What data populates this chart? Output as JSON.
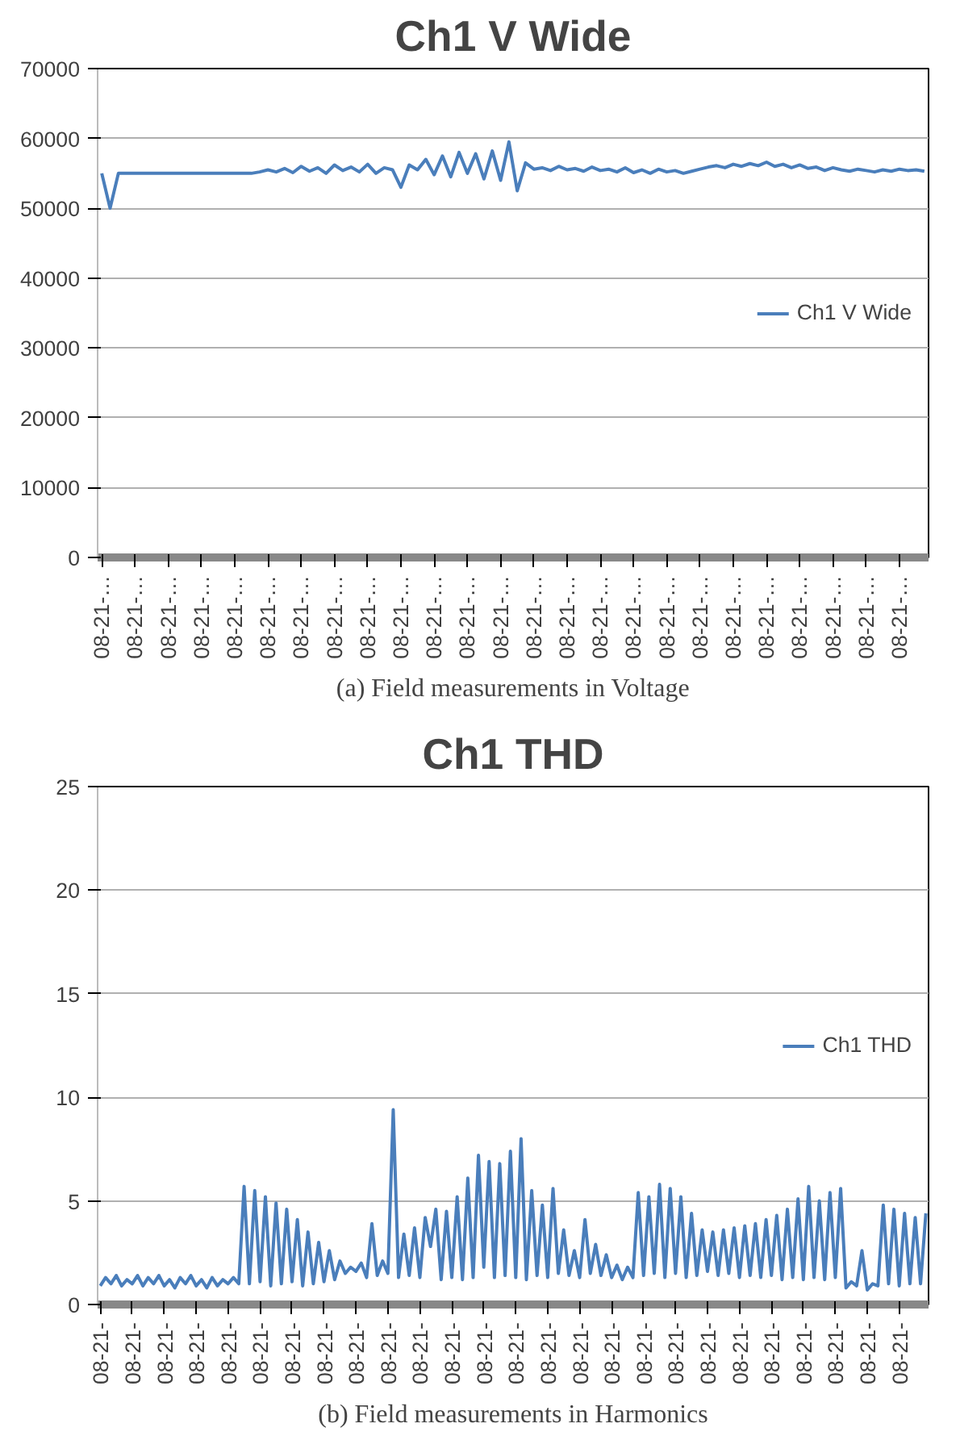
{
  "chart_data": [
    {
      "type": "line",
      "title": "Ch1 V Wide",
      "categories": [
        "08-21-…",
        null,
        null,
        null,
        "08-21-…",
        null,
        null,
        null,
        "08-21-…",
        null,
        null,
        null,
        "08-21-…",
        null,
        null,
        null,
        "08-21-…",
        null,
        null,
        null,
        "08-21-…",
        null,
        null,
        null,
        "08-21-…",
        null,
        null,
        null,
        "08-21-…",
        null,
        null,
        null,
        "08-21-…",
        null,
        null,
        null,
        "08-21-…",
        null,
        null,
        null,
        "08-21-…",
        null,
        null,
        null,
        "08-21-…",
        null,
        null,
        null,
        "08-21-…",
        null,
        null,
        null,
        "08-21-…",
        null,
        null,
        null,
        "08-21-…",
        null,
        null,
        null,
        "08-21-…",
        null,
        null,
        null,
        "08-21-…",
        null,
        null,
        null,
        "08-21-…",
        null,
        null,
        null,
        "08-21-…",
        null,
        null,
        null,
        "08-21-…",
        null,
        null,
        null,
        "08-21-…",
        null,
        null,
        null,
        "08-21-…",
        null,
        null,
        null,
        "08-21-…",
        null,
        null,
        null,
        "08-21-…",
        null,
        null,
        null,
        "08-21-…",
        null,
        null,
        null
      ],
      "series": [
        {
          "name": "Ch1 V Wide",
          "color": "#4a7ebb",
          "values": [
            55000,
            50000,
            55000,
            55000,
            55000,
            55000,
            55000,
            55000,
            55000,
            55000,
            55000,
            55000,
            55000,
            55000,
            55000,
            55000,
            55000,
            55000,
            55000,
            55200,
            55500,
            55200,
            55700,
            55100,
            56000,
            55300,
            55800,
            55000,
            56200,
            55400,
            55900,
            55200,
            56300,
            55000,
            55800,
            55500,
            53000,
            56200,
            55500,
            57000,
            54800,
            57500,
            54500,
            58000,
            55000,
            57800,
            54200,
            58200,
            54000,
            59500,
            52500,
            56500,
            55600,
            55800,
            55400,
            56000,
            55500,
            55700,
            55300,
            55900,
            55400,
            55600,
            55200,
            55800,
            55100,
            55500,
            55000,
            55600,
            55200,
            55400,
            55000,
            55300,
            55600,
            55900,
            56100,
            55800,
            56300,
            56000,
            56400,
            56100,
            56600,
            56000,
            56300,
            55800,
            56200,
            55700,
            55900,
            55400,
            55800,
            55500,
            55300,
            55600,
            55400,
            55200,
            55500,
            55300,
            55600,
            55400,
            55500,
            55300
          ]
        }
      ],
      "ylim": [
        0,
        70000
      ],
      "yticks": [
        0,
        10000,
        20000,
        30000,
        40000,
        50000,
        60000,
        70000
      ],
      "grid": "y",
      "legend": "right",
      "marker": "none",
      "line_style": "solid",
      "annotations": [
        "(a) Field measurements in Voltage"
      ]
    },
    {
      "type": "line",
      "title": "Ch1 THD",
      "categories": [
        "08-21-",
        null,
        null,
        null,
        null,
        null,
        "08-21-",
        null,
        null,
        null,
        null,
        null,
        "08-21-",
        null,
        null,
        null,
        null,
        null,
        "08-21-",
        null,
        null,
        null,
        null,
        null,
        "08-21-",
        null,
        null,
        null,
        null,
        null,
        "08-21-",
        null,
        null,
        null,
        null,
        null,
        "08-21-",
        null,
        null,
        null,
        null,
        null,
        "08-21-",
        null,
        null,
        null,
        null,
        null,
        "08-21-",
        null,
        null,
        null,
        null,
        null,
        "08-21-",
        null,
        null,
        null,
        null,
        null,
        "08-21-",
        null,
        null,
        null,
        null,
        null,
        "08-21-",
        null,
        null,
        null,
        null,
        null,
        "08-21-",
        null,
        null,
        null,
        null,
        null,
        "08-21-",
        null,
        null,
        null,
        null,
        null,
        "08-21-",
        null,
        null,
        null,
        null,
        null,
        "08-21-",
        null,
        null,
        null,
        null,
        null,
        "08-21-",
        null,
        null,
        null,
        null,
        null,
        "08-21-",
        null,
        null,
        null,
        null,
        null,
        "08-21-",
        null,
        null,
        null,
        null,
        null,
        "08-21-",
        null,
        null,
        null,
        null,
        null,
        "08-21-",
        null,
        null,
        null,
        null,
        null,
        "08-21-",
        null,
        null,
        null,
        null,
        null,
        "08-21-",
        null,
        null,
        null,
        null,
        null,
        "08-21-",
        null,
        null,
        null,
        null,
        null,
        "08-21-",
        null,
        null,
        null,
        null,
        null,
        "08-21-",
        null,
        null,
        null,
        null,
        null
      ],
      "series": [
        {
          "name": "Ch1 THD",
          "color": "#4a7ebb",
          "values": [
            0.9,
            1.3,
            1.0,
            1.4,
            0.9,
            1.2,
            1.0,
            1.4,
            0.9,
            1.3,
            1.0,
            1.4,
            0.9,
            1.2,
            0.8,
            1.3,
            1.0,
            1.4,
            0.9,
            1.2,
            0.8,
            1.3,
            0.9,
            1.2,
            1.0,
            1.3,
            1.0,
            5.7,
            1.0,
            5.5,
            1.1,
            5.2,
            0.9,
            4.9,
            1.0,
            4.6,
            1.1,
            4.1,
            0.9,
            3.5,
            1.0,
            3.0,
            1.1,
            2.6,
            1.2,
            2.1,
            1.5,
            1.8,
            1.6,
            2.0,
            1.3,
            3.9,
            1.4,
            2.1,
            1.5,
            9.4,
            1.3,
            3.4,
            1.4,
            3.7,
            1.3,
            4.2,
            2.8,
            4.6,
            1.2,
            4.5,
            1.3,
            5.2,
            1.2,
            6.1,
            1.3,
            7.2,
            1.8,
            6.9,
            1.3,
            6.8,
            1.4,
            7.4,
            1.3,
            8.0,
            1.2,
            5.5,
            1.4,
            4.8,
            1.3,
            5.6,
            1.5,
            3.6,
            1.4,
            2.6,
            1.3,
            4.1,
            1.5,
            2.9,
            1.4,
            2.4,
            1.3,
            1.9,
            1.2,
            1.8,
            1.3,
            5.4,
            1.4,
            5.2,
            1.5,
            5.8,
            1.3,
            5.6,
            1.5,
            5.2,
            1.3,
            4.4,
            1.4,
            3.6,
            1.6,
            3.5,
            1.4,
            3.6,
            1.5,
            3.7,
            1.3,
            3.8,
            1.4,
            3.9,
            1.3,
            4.1,
            1.4,
            4.3,
            1.2,
            4.6,
            1.3,
            5.1,
            1.2,
            5.7,
            1.3,
            5.0,
            1.2,
            5.4,
            1.3,
            5.6,
            0.8,
            1.1,
            0.9,
            2.6,
            0.7,
            1.0,
            0.9,
            4.8,
            1.0,
            4.6,
            0.9,
            4.4,
            1.0,
            4.2,
            1.0,
            4.4
          ]
        }
      ],
      "ylim": [
        0,
        25
      ],
      "yticks": [
        0,
        5,
        10,
        15,
        20,
        25
      ],
      "grid": "y",
      "legend": "right",
      "marker": "none",
      "line_style": "solid",
      "annotations": [
        "(b) Field measurements in Harmonics"
      ]
    }
  ]
}
